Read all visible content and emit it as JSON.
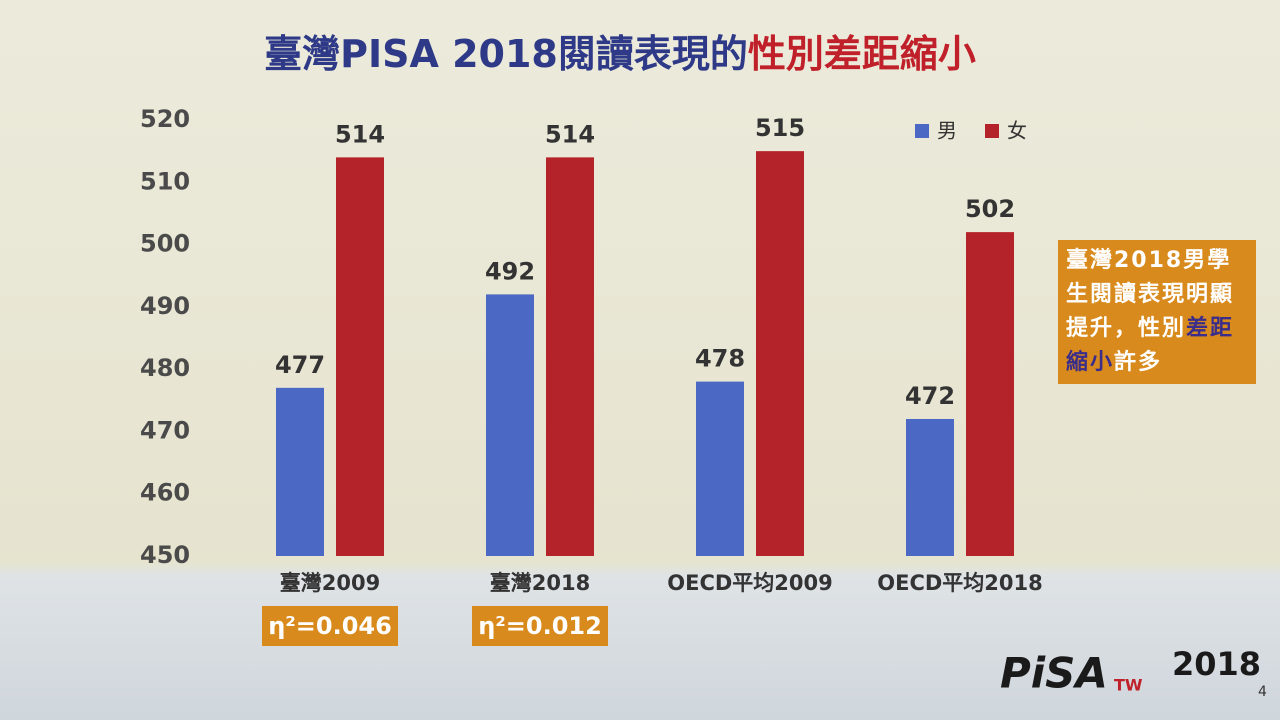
{
  "chart_data": {
    "type": "bar",
    "title": "臺灣PISA 2018閱讀表現的",
    "title_highlight": "性別差距縮小",
    "categories": [
      "臺灣2009",
      "臺灣2018",
      "OECD平均2009",
      "OECD平均2018"
    ],
    "series": [
      {
        "name": "男",
        "color": "#4a68c4",
        "values": [
          477,
          492,
          478,
          472
        ]
      },
      {
        "name": "女",
        "color": "#b5232a",
        "values": [
          514,
          514,
          515,
          502
        ]
      }
    ],
    "ylim": [
      450,
      520
    ],
    "yticks": [
      450,
      460,
      470,
      480,
      490,
      500,
      510,
      520
    ],
    "grid": false,
    "legend": "top-right",
    "annotations": [
      "η²=0.046",
      "η²=0.012"
    ],
    "callout": [
      "臺灣2018男學生閱讀表現明顯提升，性別",
      "差距縮小",
      "許多"
    ],
    "logo": {
      "main": "PiSA",
      "sub": "TW",
      "year": "2018"
    },
    "page_number": "4"
  }
}
